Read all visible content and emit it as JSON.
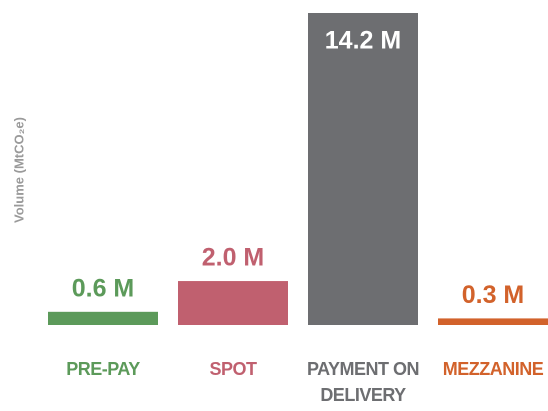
{
  "chart_data": {
    "type": "bar",
    "y_label": "Volume (MtCO₂e)",
    "categories": [
      "PRE-PAY",
      "SPOT",
      "PAYMENT ON DELIVERY",
      "MEZZANINE"
    ],
    "values": [
      0.6,
      2.0,
      14.2,
      0.3
    ],
    "value_labels": [
      "0.6 M",
      "2.0 M",
      "14.2 M",
      "0.3 M"
    ],
    "colors": [
      "#5c9a5a",
      "#c0606f",
      "#6d6e71",
      "#d2622b"
    ],
    "ylim": [
      0,
      14.2
    ]
  }
}
